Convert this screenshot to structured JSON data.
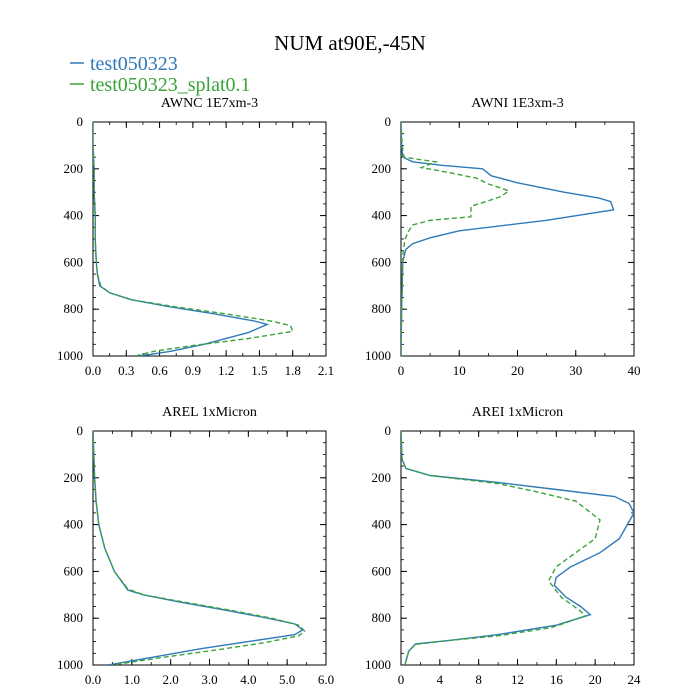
{
  "title": "NUM at90E,-45N",
  "colors": {
    "series1": "#2f7ab9",
    "series2": "#3aa33a",
    "axis": "#000000"
  },
  "legend": [
    {
      "label": "test050323",
      "color": "#2f7ab9",
      "style": "solid"
    },
    {
      "label": "test050323_splat0.1",
      "color": "#3aa33a",
      "style": "dashed"
    }
  ],
  "chart_data": [
    {
      "type": "line",
      "title": "AWNC  1E7xm-3",
      "xlim": [
        0,
        2.1
      ],
      "ylim": [
        1000,
        0
      ],
      "xticks": [
        0,
        0.3,
        0.6,
        0.9,
        1.2,
        1.5,
        1.8,
        2.1
      ],
      "xtick_labels": [
        "0.0",
        "0.3",
        "0.6",
        "0.9",
        "1.2",
        "1.5",
        "1.8",
        "2.1"
      ],
      "yticks": [
        0,
        200,
        400,
        600,
        800,
        1000
      ],
      "ytick_labels": [
        "0",
        "200",
        "400",
        "600",
        "800",
        "1000"
      ],
      "series": [
        {
          "name": "test050323",
          "style": "solid",
          "points": [
            [
              0.0,
              0
            ],
            [
              0.0,
              100
            ],
            [
              0.01,
              200
            ],
            [
              0.01,
              300
            ],
            [
              0.02,
              400
            ],
            [
              0.02,
              500
            ],
            [
              0.03,
              600
            ],
            [
              0.04,
              650
            ],
            [
              0.06,
              700
            ],
            [
              0.15,
              730
            ],
            [
              0.35,
              760
            ],
            [
              0.7,
              790
            ],
            [
              1.1,
              820
            ],
            [
              1.45,
              850
            ],
            [
              1.57,
              865
            ],
            [
              1.4,
              900
            ],
            [
              1.0,
              950
            ],
            [
              0.7,
              980
            ],
            [
              0.42,
              1000
            ]
          ]
        },
        {
          "name": "test050323_splat0.1",
          "style": "dashed",
          "points": [
            [
              0.0,
              0
            ],
            [
              0.0,
              100
            ],
            [
              0.01,
              200
            ],
            [
              0.01,
              300
            ],
            [
              0.02,
              400
            ],
            [
              0.02,
              500
            ],
            [
              0.03,
              600
            ],
            [
              0.04,
              650
            ],
            [
              0.07,
              700
            ],
            [
              0.15,
              730
            ],
            [
              0.35,
              760
            ],
            [
              0.75,
              790
            ],
            [
              1.2,
              820
            ],
            [
              1.6,
              850
            ],
            [
              1.78,
              870
            ],
            [
              1.8,
              895
            ],
            [
              1.4,
              925
            ],
            [
              0.9,
              955
            ],
            [
              0.55,
              980
            ],
            [
              0.38,
              1000
            ]
          ]
        }
      ]
    },
    {
      "type": "line",
      "title": "AWNI  1E3xm-3",
      "xlim": [
        0,
        40
      ],
      "ylim": [
        1000,
        0
      ],
      "xticks": [
        0,
        10,
        20,
        30,
        40
      ],
      "xtick_labels": [
        "0",
        "10",
        "20",
        "30",
        "40"
      ],
      "yticks": [
        0,
        200,
        400,
        600,
        800,
        1000
      ],
      "ytick_labels": [
        "0",
        "200",
        "400",
        "600",
        "800",
        "1000"
      ],
      "series": [
        {
          "name": "test050323",
          "style": "solid",
          "points": [
            [
              0.0,
              0
            ],
            [
              0.1,
              100
            ],
            [
              0.3,
              150
            ],
            [
              2,
              170
            ],
            [
              7,
              185
            ],
            [
              14,
              200
            ],
            [
              15.5,
              230
            ],
            [
              20,
              260
            ],
            [
              28,
              300
            ],
            [
              34,
              325
            ],
            [
              36,
              340
            ],
            [
              36.5,
              375
            ],
            [
              25,
              420
            ],
            [
              10,
              465
            ],
            [
              5,
              495
            ],
            [
              2,
              520
            ],
            [
              0.8,
              545
            ],
            [
              0.3,
              600
            ],
            [
              0.2,
              700
            ],
            [
              0.1,
              800
            ],
            [
              0.0,
              1000
            ]
          ]
        },
        {
          "name": "test050323_splat0.1",
          "style": "dashed",
          "points": [
            [
              0.0,
              0
            ],
            [
              0.2,
              100
            ],
            [
              0.5,
              150
            ],
            [
              3,
              160
            ],
            [
              6,
              170
            ],
            [
              3.5,
              195
            ],
            [
              8,
              215
            ],
            [
              13,
              240
            ],
            [
              15,
              265
            ],
            [
              17.5,
              285
            ],
            [
              18.5,
              295
            ],
            [
              17,
              320
            ],
            [
              14,
              345
            ],
            [
              12,
              360
            ],
            [
              12,
              405
            ],
            [
              5,
              420
            ],
            [
              2,
              440
            ],
            [
              1.2,
              470
            ],
            [
              0.7,
              500
            ],
            [
              0.4,
              550
            ],
            [
              0.3,
              600
            ],
            [
              0.2,
              700
            ],
            [
              0.1,
              800
            ],
            [
              0.0,
              1000
            ]
          ]
        }
      ]
    },
    {
      "type": "line",
      "title": "AREL  1xMicron",
      "xlim": [
        0,
        6
      ],
      "ylim": [
        1000,
        0
      ],
      "xticks": [
        0,
        1,
        2,
        3,
        4,
        5,
        6
      ],
      "xtick_labels": [
        "0.0",
        "1.0",
        "2.0",
        "3.0",
        "4.0",
        "5.0",
        "6.0"
      ],
      "yticks": [
        0,
        200,
        400,
        600,
        800,
        1000
      ],
      "ytick_labels": [
        "0",
        "200",
        "400",
        "600",
        "800",
        "1000"
      ],
      "series": [
        {
          "name": "test050323",
          "style": "solid",
          "points": [
            [
              0.0,
              0
            ],
            [
              0.02,
              100
            ],
            [
              0.04,
              200
            ],
            [
              0.08,
              300
            ],
            [
              0.15,
              400
            ],
            [
              0.3,
              500
            ],
            [
              0.55,
              600
            ],
            [
              0.9,
              680
            ],
            [
              1.3,
              700
            ],
            [
              2.2,
              730
            ],
            [
              3.4,
              765
            ],
            [
              4.5,
              800
            ],
            [
              5.2,
              825
            ],
            [
              5.4,
              850
            ],
            [
              5.2,
              870
            ],
            [
              4.0,
              900
            ],
            [
              2.8,
              930
            ],
            [
              1.6,
              965
            ],
            [
              0.4,
              1000
            ]
          ]
        },
        {
          "name": "test050323_splat0.1",
          "style": "dashed",
          "points": [
            [
              0.0,
              0
            ],
            [
              0.02,
              100
            ],
            [
              0.04,
              200
            ],
            [
              0.08,
              300
            ],
            [
              0.15,
              400
            ],
            [
              0.3,
              500
            ],
            [
              0.55,
              600
            ],
            [
              0.9,
              675
            ],
            [
              1.3,
              700
            ],
            [
              2.3,
              730
            ],
            [
              3.5,
              765
            ],
            [
              4.6,
              800
            ],
            [
              5.3,
              830
            ],
            [
              5.45,
              855
            ],
            [
              5.3,
              875
            ],
            [
              4.4,
              905
            ],
            [
              3.2,
              935
            ],
            [
              1.9,
              965
            ],
            [
              0.5,
              1000
            ]
          ]
        }
      ]
    },
    {
      "type": "line",
      "title": "AREI  1xMicron",
      "xlim": [
        0,
        24
      ],
      "ylim": [
        1000,
        0
      ],
      "xticks": [
        0,
        4,
        8,
        12,
        16,
        20,
        24
      ],
      "xtick_labels": [
        "0",
        "4",
        "8",
        "12",
        "16",
        "20",
        "24"
      ],
      "yticks": [
        0,
        200,
        400,
        600,
        800,
        1000
      ],
      "ytick_labels": [
        "0",
        "200",
        "400",
        "600",
        "800",
        "1000"
      ],
      "series": [
        {
          "name": "test050323",
          "style": "solid",
          "points": [
            [
              0.0,
              0
            ],
            [
              0.1,
              120
            ],
            [
              0.5,
              160
            ],
            [
              3,
              190
            ],
            [
              10,
              220
            ],
            [
              16,
              250
            ],
            [
              22,
              280
            ],
            [
              23.5,
              310
            ],
            [
              24,
              350
            ],
            [
              22.5,
              460
            ],
            [
              20.5,
              520
            ],
            [
              17.5,
              580
            ],
            [
              16,
              625
            ],
            [
              15.8,
              660
            ],
            [
              17,
              710
            ],
            [
              18.5,
              750
            ],
            [
              19.5,
              785
            ],
            [
              16,
              830
            ],
            [
              10,
              870
            ],
            [
              5,
              895
            ],
            [
              1.5,
              910
            ],
            [
              0.8,
              940
            ],
            [
              0.4,
              1000
            ]
          ]
        },
        {
          "name": "test050323_splat0.1",
          "style": "dashed",
          "points": [
            [
              0.0,
              0
            ],
            [
              0.1,
              120
            ],
            [
              0.5,
              160
            ],
            [
              3,
              190
            ],
            [
              10,
              225
            ],
            [
              14,
              260
            ],
            [
              18,
              300
            ],
            [
              20.5,
              380
            ],
            [
              20,
              460
            ],
            [
              18,
              520
            ],
            [
              16,
              580
            ],
            [
              15.2,
              640
            ],
            [
              16.5,
              710
            ],
            [
              18.5,
              770
            ],
            [
              19,
              790
            ],
            [
              15.5,
              840
            ],
            [
              10,
              875
            ],
            [
              5,
              895
            ],
            [
              1.5,
              912
            ],
            [
              0.8,
              940
            ],
            [
              0.4,
              1000
            ]
          ]
        }
      ]
    }
  ]
}
